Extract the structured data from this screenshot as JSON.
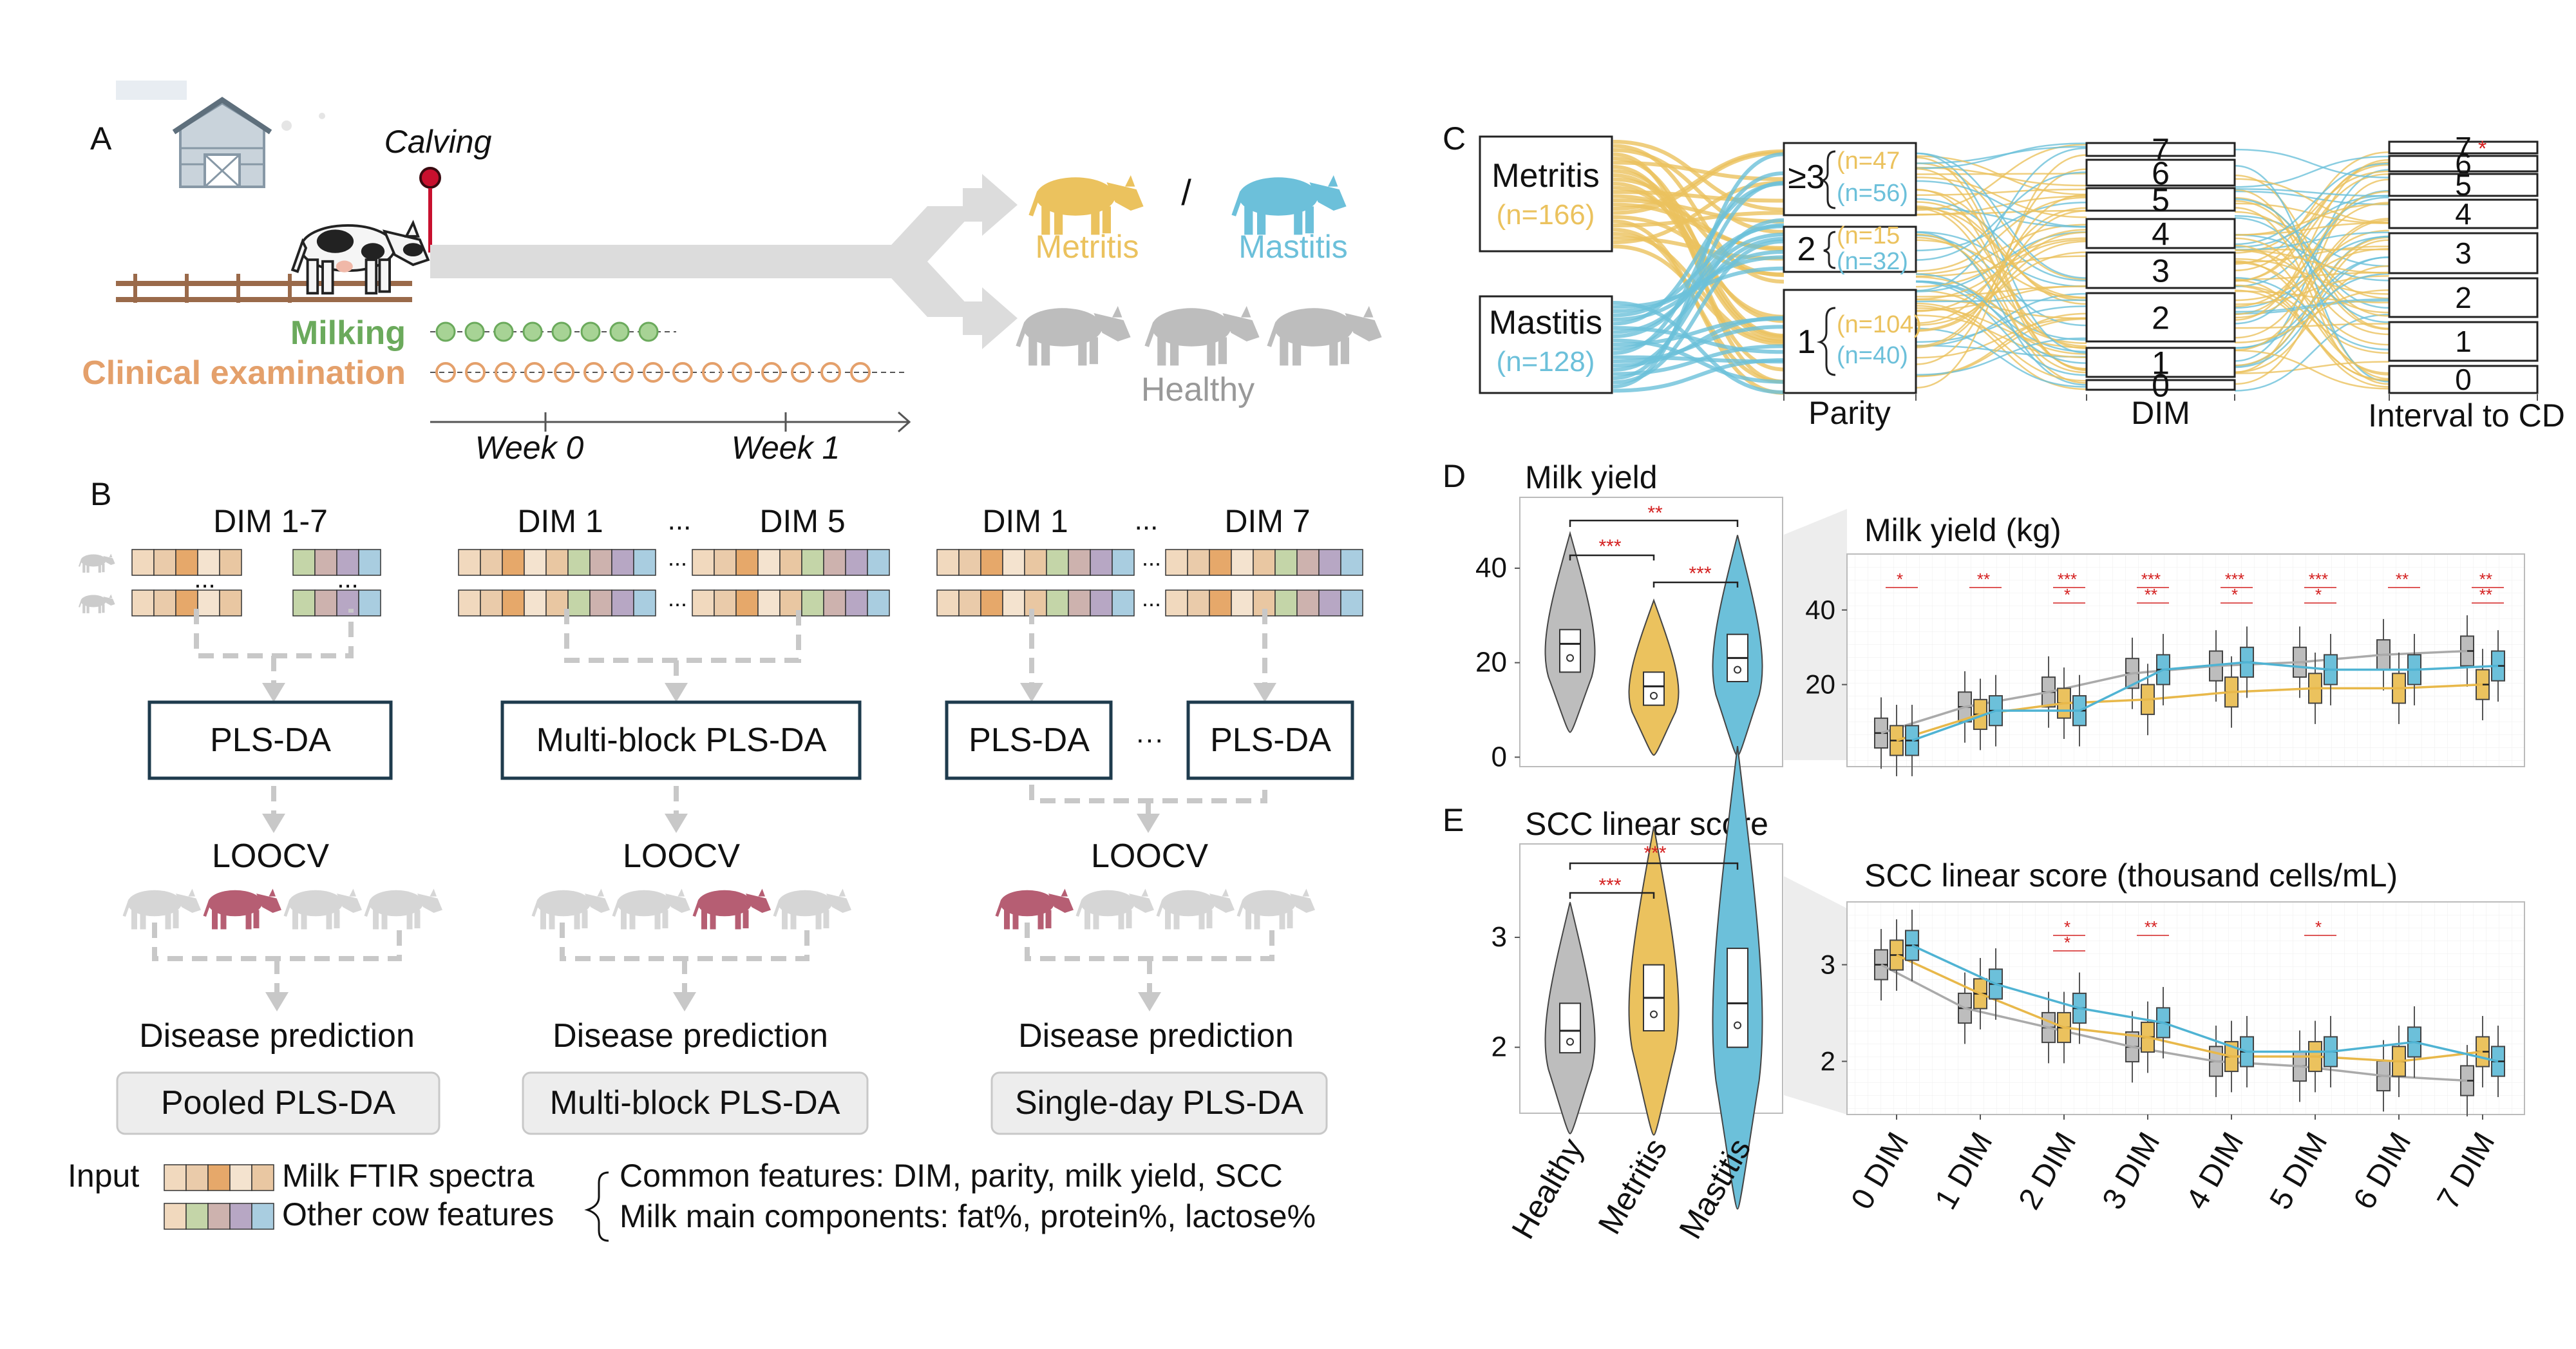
{
  "panel_letters": [
    "A",
    "B",
    "C",
    "D",
    "E"
  ],
  "colors": {
    "healthy": "#BDBDBD",
    "metritis": "#EBC25E",
    "mastitis": "#6CC0DA",
    "milking": "#6BAA5C",
    "clinical": "#E4A06B",
    "box_border": "#1E3B4D",
    "highlight_cow": "#B65E73",
    "star": "#D42020",
    "arrow": "#CCCCCC"
  },
  "panelA": {
    "calving": "Calving",
    "milking": "Milking",
    "clinical": "Clinical examination",
    "week0": "Week 0",
    "week1": "Week 1",
    "metritis": "Metritis",
    "slash": "/",
    "mastitis": "Mastitis",
    "healthy": "Healthy"
  },
  "panelB": {
    "ellipsis": "...",
    "hellipsis": "···",
    "col1": {
      "label": "DIM 1-7",
      "model": "PLS-DA",
      "cv": "LOOCV",
      "pred": "Disease prediction",
      "name": "Pooled PLS-DA"
    },
    "col2": {
      "label_a": "DIM 1",
      "label_b": "DIM 5",
      "model": "Multi-block PLS-DA",
      "cv": "LOOCV",
      "pred": "Disease prediction",
      "name": "Multi-block PLS-DA"
    },
    "col3": {
      "label_a": "DIM 1",
      "label_b": "DIM 7",
      "model_a": "PLS-DA",
      "model_b": "PLS-DA",
      "cv": "LOOCV",
      "pred": "Disease prediction",
      "name": "Single-day PLS-DA"
    },
    "legend": {
      "input": "Input",
      "spectra": "Milk FTIR spectra",
      "other": "Other cow features",
      "common": "Common features: DIM, parity, milk yield, SCC",
      "components": "Milk main components: fat%, protein%, lactose%"
    }
  },
  "panelC": {
    "metritis": "Metritis",
    "metritis_n": "(n=166)",
    "mastitis": "Mastitis",
    "mastitis_n": "(n=128)",
    "p3": "≥3",
    "p3_met": "(n=47",
    "p3_mas": "(n=56)",
    "p2": "2",
    "p2_met": "(n=15",
    "p2_mas": "(n=32)",
    "p1": "1",
    "p1_met": "(n=104)",
    "p1_mas": "(n=40)",
    "axis_parity": "Parity",
    "axis_dim": "DIM",
    "axis_interval": "Interval to CD",
    "dim_labels": [
      "7",
      "6",
      "5",
      "4",
      "3",
      "2",
      "1",
      "0"
    ],
    "interval_labels": [
      "7",
      "6",
      "5",
      "4",
      "3",
      "2",
      "1",
      "0"
    ],
    "star": "*"
  },
  "panelD": {
    "title_left": "Milk yield",
    "title_right": "Milk yield (kg)",
    "sig": [
      "**",
      "***",
      "***"
    ],
    "chart_data": {
      "type": "box",
      "title": "Milk yield (kg)",
      "categories": [
        "0 DIM",
        "1 DIM",
        "2 DIM",
        "3 DIM",
        "4 DIM",
        "5 DIM",
        "6 DIM",
        "7 DIM"
      ],
      "series": [
        {
          "name": "Healthy",
          "median": [
            7,
            14,
            18,
            23,
            25,
            26,
            28,
            29
          ]
        },
        {
          "name": "Metritis",
          "median": [
            5,
            12,
            15,
            16,
            18,
            19,
            19,
            20
          ]
        },
        {
          "name": "Mastitis",
          "median": [
            5,
            13,
            13,
            24,
            26,
            24,
            24,
            25
          ]
        }
      ],
      "sig_labels": [
        "*",
        "**",
        "***\n*",
        "***\n**",
        "***\n*",
        "***\n*",
        "**",
        "**\n**"
      ],
      "ylim": [
        -2,
        55
      ],
      "yticks": [
        20,
        40
      ]
    },
    "violin_data": {
      "groups": [
        "Healthy",
        "Metritis",
        "Mastitis"
      ],
      "median": [
        24,
        15,
        21
      ],
      "q1": [
        18,
        11,
        16
      ],
      "q3": [
        27,
        18,
        26
      ],
      "ylim": [
        -2,
        55
      ],
      "yticks": [
        0,
        20,
        40
      ]
    }
  },
  "panelE": {
    "title_left": "SCC linear score",
    "title_right": "SCC linear score (thousand cells/mL)",
    "sig": [
      "***",
      "***"
    ],
    "group_labels": [
      "Healthy",
      "Metritis",
      "Mastitis"
    ],
    "chart_data": {
      "type": "box",
      "title": "SCC linear score (thousand cells/mL)",
      "categories": [
        "0 DIM",
        "1 DIM",
        "2 DIM",
        "3 DIM",
        "4 DIM",
        "5 DIM",
        "6 DIM",
        "7 DIM"
      ],
      "series": [
        {
          "name": "Healthy",
          "median": [
            3.0,
            2.55,
            2.35,
            2.15,
            2.0,
            1.95,
            1.85,
            1.8
          ]
        },
        {
          "name": "Metritis",
          "median": [
            3.1,
            2.7,
            2.35,
            2.25,
            2.05,
            2.05,
            2.0,
            2.1
          ]
        },
        {
          "name": "Mastitis",
          "median": [
            3.2,
            2.8,
            2.55,
            2.4,
            2.1,
            2.1,
            2.2,
            2.0
          ]
        }
      ],
      "sig_labels": [
        "",
        "",
        "*\n*",
        "**",
        "",
        "*",
        "",
        ""
      ],
      "ylim": [
        1.45,
        3.65
      ],
      "yticks": [
        2,
        3
      ]
    },
    "violin_data": {
      "groups": [
        "Healthy",
        "Metritis",
        "Mastitis"
      ],
      "median": [
        2.15,
        2.45,
        2.4
      ],
      "q1": [
        1.95,
        2.15,
        2.0
      ],
      "q3": [
        2.4,
        2.75,
        2.9
      ],
      "ylim": [
        1.4,
        3.85
      ],
      "yticks": [
        2,
        3
      ]
    }
  }
}
